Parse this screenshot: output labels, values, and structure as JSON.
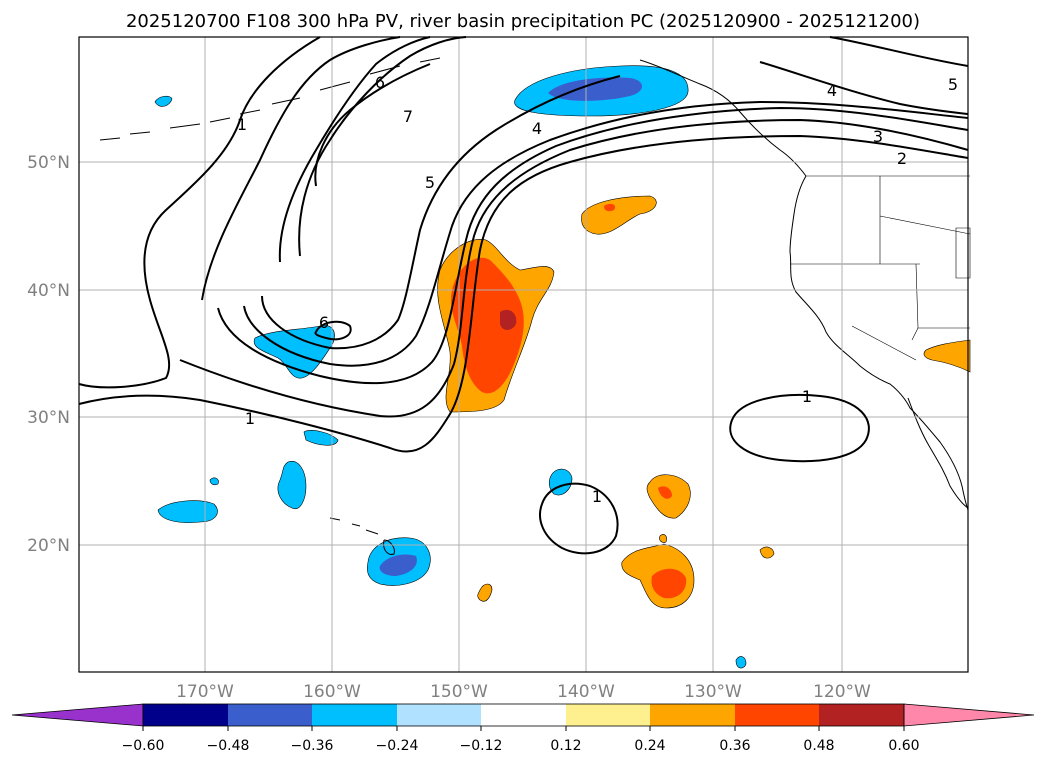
{
  "title": "2025120700 F108 300 hPa PV, river basin precipitation PC (2025120900 - 2025121200)",
  "axes": {
    "lon_labels": [
      "170°W",
      "160°W",
      "150°W",
      "140°W",
      "130°W",
      "120°W"
    ],
    "lat_labels": [
      "50°N",
      "40°N",
      "30°N",
      "20°N"
    ]
  },
  "colorbar": {
    "ticks": [
      "−0.60",
      "−0.48",
      "−0.36",
      "−0.24",
      "−0.12",
      "0.12",
      "0.24",
      "0.36",
      "0.48",
      "0.60"
    ],
    "colors": [
      "#9932cc",
      "#00008b",
      "#3a5fcd",
      "#00bfff",
      "#b0e2ff",
      "#ffffff",
      "#fff08f",
      "#ffa500",
      "#ff4500",
      "#b22222",
      "#ff88aa"
    ]
  },
  "contour_labels": {
    "c1": "1",
    "c2": "1",
    "c3": "1",
    "c4": "1",
    "c5": "4",
    "c6": "5",
    "c7": "6",
    "c8": "7",
    "c9": "6",
    "c10": "4",
    "c11": "3",
    "c12": "2",
    "c13": "5"
  },
  "colors": {
    "neg_light": "#00bfff",
    "neg_dark": "#3a5fcd",
    "pos_orange": "#ffa500",
    "pos_red": "#ff4500",
    "pos_darkred": "#b22222",
    "grid": "#b0b0b0",
    "contour": "#000000"
  }
}
